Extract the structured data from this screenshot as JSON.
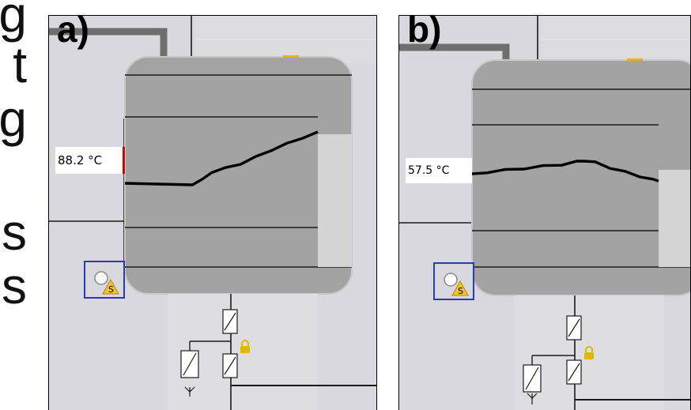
{
  "left_text": {
    "lines": [
      "g",
      "t",
      "g",
      "",
      "s",
      "s"
    ]
  },
  "panels": [
    {
      "label": "a)",
      "temperature_text": "88.2 °C",
      "marker_color": "#e00000",
      "curve": [
        [
          0.0,
          0.0
        ],
        [
          0.35,
          0.0
        ],
        [
          0.4,
          -0.08
        ],
        [
          0.45,
          -0.25
        ],
        [
          0.52,
          -0.32
        ],
        [
          0.6,
          -0.42
        ],
        [
          0.68,
          -0.55
        ],
        [
          0.76,
          -0.7
        ],
        [
          0.84,
          -0.82
        ],
        [
          0.92,
          -0.95
        ],
        [
          1.0,
          -1.05
        ]
      ]
    },
    {
      "label": "b)",
      "temperature_text": "57.5 °C",
      "marker_color": "#ffffff",
      "curve": [
        [
          0.0,
          0.0
        ],
        [
          0.08,
          -0.08
        ],
        [
          0.18,
          -0.14
        ],
        [
          0.28,
          -0.2
        ],
        [
          0.38,
          -0.26
        ],
        [
          0.48,
          -0.32
        ],
        [
          0.56,
          -0.4
        ],
        [
          0.6,
          -0.45
        ],
        [
          0.66,
          -0.38
        ],
        [
          0.74,
          -0.22
        ],
        [
          0.82,
          -0.08
        ],
        [
          0.9,
          0.05
        ],
        [
          0.97,
          0.17
        ],
        [
          1.0,
          0.18
        ]
      ]
    }
  ],
  "colors": {
    "panel_bg": "#d9d8de",
    "tank_fill": "#a3a3a3",
    "tank_border": "#c8c8c8",
    "lines": "#1a1a1a",
    "grey_pipe": "#6e6e6e",
    "sensor_border": "#2a3db0",
    "warning_yellow": "#f4c430",
    "valve_yellow": "#e2b600"
  },
  "icons": {
    "sensor": "circle-sensor-icon",
    "warning": "warning-triangle-icon",
    "lock": "lock-icon",
    "valve": "valve-icon",
    "drain": "drain-icon"
  }
}
